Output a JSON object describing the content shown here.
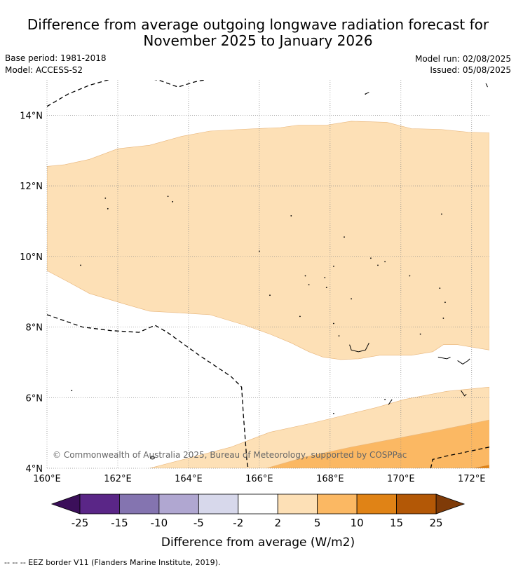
{
  "header": {
    "title_line1": "Difference from average outgoing longwave radiation forecast for",
    "title_line2": "November 2025 to January 2026",
    "base_period": "Base period: 1981-2018",
    "model": "Model: ACCESS-S2",
    "model_run": "Model run: 02/08/2025",
    "issued": "Issued: 05/08/2025"
  },
  "chart_data": {
    "type": "heatmap",
    "xlabel": "",
    "ylabel": "",
    "x_range": [
      160,
      172.5
    ],
    "y_range": [
      4,
      15
    ],
    "x_ticks": [
      160,
      162,
      164,
      166,
      168,
      170,
      172
    ],
    "x_tick_labels": [
      "160°E",
      "162°E",
      "164°E",
      "166°E",
      "168°E",
      "170°E",
      "172°E"
    ],
    "y_ticks": [
      4,
      6,
      8,
      10,
      12,
      14
    ],
    "y_tick_labels": [
      "4°N",
      "6°N",
      "8°N",
      "10°N",
      "12°N",
      "14°N"
    ],
    "grid": "dotted",
    "regions": [
      {
        "level": "2 to 5",
        "color": "#fde0b6",
        "polygon": [
          [
            160,
            12.55
          ],
          [
            160.5,
            12.6
          ],
          [
            161.2,
            12.75
          ],
          [
            162,
            13.05
          ],
          [
            162.9,
            13.15
          ],
          [
            163.8,
            13.4
          ],
          [
            164.6,
            13.55
          ],
          [
            165.5,
            13.6
          ],
          [
            166.6,
            13.65
          ],
          [
            167.1,
            13.72
          ],
          [
            167.9,
            13.72
          ],
          [
            168.6,
            13.83
          ],
          [
            169.6,
            13.8
          ],
          [
            170.3,
            13.62
          ],
          [
            171.1,
            13.6
          ],
          [
            171.9,
            13.52
          ],
          [
            172.5,
            13.5
          ],
          [
            172.5,
            7.35
          ],
          [
            171.6,
            7.5
          ],
          [
            171.2,
            7.5
          ],
          [
            170.9,
            7.3
          ],
          [
            170.3,
            7.2
          ],
          [
            169.4,
            7.2
          ],
          [
            168.8,
            7.1
          ],
          [
            168.3,
            7.08
          ],
          [
            167.8,
            7.15
          ],
          [
            167.4,
            7.3
          ],
          [
            166.9,
            7.55
          ],
          [
            166.3,
            7.8
          ],
          [
            165.6,
            8.05
          ],
          [
            164.6,
            8.35
          ],
          [
            163.8,
            8.4
          ],
          [
            162.9,
            8.45
          ],
          [
            162.2,
            8.65
          ],
          [
            161.2,
            8.95
          ],
          [
            160.6,
            9.28
          ],
          [
            160,
            9.6
          ]
        ]
      },
      {
        "level": "2 to 5",
        "color": "#fde0b6",
        "polygon": [
          [
            162.9,
            4
          ],
          [
            165.2,
            4.6
          ],
          [
            166.3,
            5.02
          ],
          [
            167.5,
            5.28
          ],
          [
            168.4,
            5.5
          ],
          [
            169.3,
            5.72
          ],
          [
            170.1,
            5.95
          ],
          [
            171.3,
            6.18
          ],
          [
            172.5,
            6.3
          ],
          [
            172.5,
            4
          ],
          [
            162.9,
            4
          ]
        ]
      },
      {
        "level": "5 to 10",
        "color": "#fbb863",
        "polygon": [
          [
            166.2,
            4
          ],
          [
            167.3,
            4.32
          ],
          [
            168.6,
            4.6
          ],
          [
            169.8,
            4.83
          ],
          [
            171,
            5.06
          ],
          [
            172.5,
            5.37
          ],
          [
            172.5,
            4
          ],
          [
            166.2,
            4
          ]
        ]
      },
      {
        "level": "10 to 15",
        "color": "#e08316",
        "polygon": [
          [
            172,
            4
          ],
          [
            172.5,
            4.1
          ],
          [
            172.5,
            4
          ],
          [
            172,
            4
          ]
        ]
      }
    ],
    "colorbar": {
      "label": "Difference from average (W/m2)",
      "ticks": [
        "-25",
        "-15",
        "-10",
        "-5",
        "-2",
        "2",
        "5",
        "10",
        "15",
        "25"
      ],
      "colors": [
        "#5a2687",
        "#8474b0",
        "#b0a7d1",
        "#d7d8eb",
        "#ffffff",
        "#fde0b6",
        "#fbb863",
        "#e08316",
        "#b35806"
      ],
      "under_color": "#3b0f5a",
      "over_color": "#7f3b08"
    },
    "annotations": {
      "copyright": "© Commonwealth of Australia 2025, Bureau of Meteorology, supported by COSPPac",
      "legend": "--  --  -- EEZ border V11 (Flanders Marine Institute, 2019)."
    }
  }
}
